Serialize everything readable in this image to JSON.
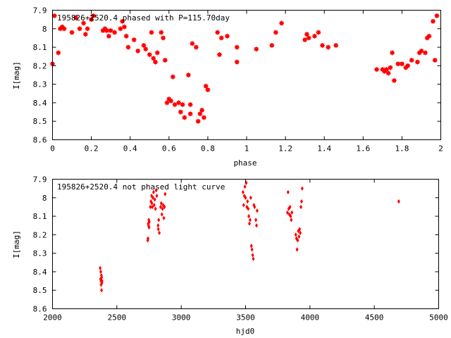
{
  "chart_data": [
    {
      "type": "scatter",
      "title": "195826+2520.4 phased with P=115.70day",
      "xlabel": "phase",
      "ylabel": "I[mag]",
      "xlim": [
        0,
        2
      ],
      "ylim": [
        7.9,
        8.6
      ],
      "y_inverted": true,
      "grid": false,
      "marker_color": "#ff0000",
      "marker": "filled-circle-with-cross",
      "xticks": [
        0,
        0.2,
        0.4,
        0.6,
        0.8,
        1,
        1.2,
        1.4,
        1.6,
        1.8,
        2
      ],
      "yticks": [
        7.9,
        8,
        8.1,
        8.2,
        8.3,
        8.4,
        8.5,
        8.6
      ],
      "x": [
        0.0,
        0.01,
        0.03,
        0.04,
        0.05,
        0.06,
        0.1,
        0.12,
        0.14,
        0.16,
        0.17,
        0.18,
        0.2,
        0.21,
        0.26,
        0.27,
        0.28,
        0.29,
        0.3,
        0.32,
        0.35,
        0.36,
        0.37,
        0.38,
        0.39,
        0.42,
        0.44,
        0.47,
        0.48,
        0.5,
        0.51,
        0.52,
        0.53,
        0.54,
        0.56,
        0.57,
        0.58,
        0.59,
        0.6,
        0.61,
        0.62,
        0.63,
        0.65,
        0.66,
        0.67,
        0.68,
        0.7,
        0.71,
        0.71,
        0.72,
        0.74,
        0.75,
        0.76,
        0.77,
        0.78,
        0.79,
        0.8,
        0.85,
        0.86,
        0.87,
        0.9,
        0.95,
        0.95,
        1.05,
        1.13,
        1.15,
        1.18,
        1.3,
        1.31,
        1.32,
        1.35,
        1.37,
        1.39,
        1.42,
        1.46,
        1.67,
        1.7,
        1.71,
        1.72,
        1.73,
        1.74,
        1.75,
        1.76,
        1.78,
        1.8,
        1.82,
        1.83,
        1.85,
        1.88,
        1.89,
        1.9,
        1.92,
        1.93,
        1.94,
        1.96,
        1.97,
        1.98
      ],
      "y": [
        8.19,
        7.93,
        8.13,
        8.0,
        7.99,
        8.0,
        8.02,
        7.94,
        8.0,
        7.97,
        8.03,
        8.0,
        7.95,
        7.93,
        8.01,
        8.0,
        8.01,
        8.04,
        8.01,
        8.02,
        8.0,
        7.96,
        7.99,
        8.04,
        8.1,
        8.06,
        8.12,
        8.09,
        8.11,
        8.14,
        8.02,
        8.16,
        8.18,
        8.13,
        8.02,
        8.05,
        8.17,
        8.4,
        8.38,
        8.39,
        8.26,
        8.41,
        8.4,
        8.45,
        8.41,
        8.48,
        8.25,
        8.41,
        8.46,
        8.08,
        8.1,
        8.5,
        8.46,
        8.44,
        8.48,
        8.31,
        8.33,
        8.02,
        8.14,
        8.05,
        8.04,
        8.18,
        8.1,
        8.11,
        8.09,
        8.02,
        7.97,
        8.06,
        8.03,
        8.05,
        8.04,
        8.02,
        8.09,
        8.1,
        8.09,
        8.22,
        8.22,
        8.23,
        8.22,
        8.24,
        8.21,
        8.13,
        8.28,
        8.19,
        8.19,
        8.21,
        8.2,
        8.17,
        8.18,
        8.13,
        8.12,
        8.13,
        8.05,
        8.04,
        7.96,
        8.17,
        7.93
      ]
    },
    {
      "type": "scatter",
      "title": "195826+2520.4 not phased light curve",
      "xlabel": "hjd0",
      "ylabel": "I[mag]",
      "xlim": [
        2000,
        5000
      ],
      "ylim": [
        7.9,
        8.6
      ],
      "y_inverted": true,
      "grid": false,
      "marker_color": "#ff0000",
      "marker": "small-diamond",
      "xticks": [
        2000,
        2500,
        3000,
        3500,
        4000,
        4500,
        5000
      ],
      "yticks": [
        7.9,
        8,
        8.1,
        8.2,
        8.3,
        8.4,
        8.5,
        8.6
      ],
      "x": [
        2370,
        2373,
        2375,
        2377,
        2378,
        2380,
        2381,
        2382,
        2384,
        2385,
        2740,
        2742,
        2744,
        2746,
        2748,
        2750,
        2752,
        2760,
        2765,
        2770,
        2772,
        2775,
        2780,
        2785,
        2790,
        2795,
        2800,
        2805,
        2810,
        2820,
        2822,
        2825,
        2830,
        2840,
        2845,
        2850,
        2855,
        2860,
        2865,
        2870,
        2875,
        3480,
        3485,
        3490,
        3495,
        3500,
        3505,
        3510,
        3515,
        3520,
        3525,
        3530,
        3535,
        3540,
        3545,
        3550,
        3555,
        3560,
        3565,
        3570,
        3580,
        3585,
        3590,
        3825,
        3830,
        3835,
        3840,
        3845,
        3850,
        3855,
        3860,
        3890,
        3895,
        3900,
        3905,
        3910,
        3915,
        3920,
        3925,
        3930,
        3935,
        3940,
        4690
      ],
      "y": [
        8.38,
        8.44,
        8.4,
        8.45,
        8.47,
        8.42,
        8.5,
        8.43,
        8.46,
        8.45,
        8.23,
        8.22,
        8.14,
        8.15,
        8.12,
        8.16,
        8.13,
        8.05,
        8.02,
        7.99,
        8.03,
        8.05,
        8.0,
        7.97,
        8.04,
        8.01,
        8.06,
        7.96,
        7.99,
        8.15,
        8.17,
        8.12,
        8.19,
        8.05,
        8.03,
        8.09,
        8.06,
        8.04,
        8.11,
        8.05,
        7.98,
        7.97,
        8.04,
        7.99,
        7.94,
        8.0,
        7.92,
        8.05,
        8.02,
        8.06,
        8.1,
        8.14,
        8.12,
        8.0,
        8.26,
        8.28,
        8.31,
        8.33,
        8.04,
        8.05,
        8.12,
        8.15,
        8.07,
        8.08,
        7.97,
        8.06,
        8.09,
        8.05,
        8.1,
        8.12,
        8.08,
        8.2,
        8.22,
        8.28,
        8.23,
        8.18,
        8.21,
        8.17,
        8.19,
        8.05,
        8.02,
        7.95,
        8.02
      ]
    }
  ]
}
